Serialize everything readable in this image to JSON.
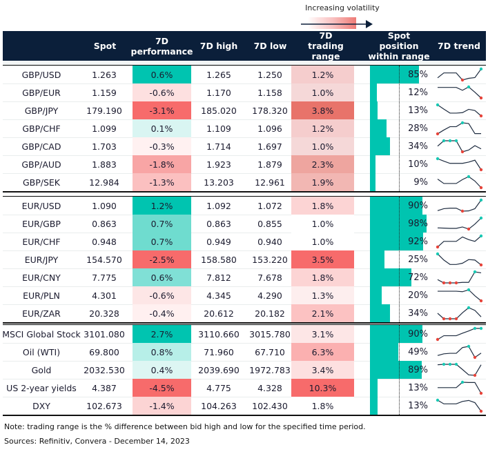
{
  "legend": {
    "label": "Increasing volatility"
  },
  "columns": {
    "spot": "Spot",
    "perf": "7D performance",
    "high": "7D high",
    "low": "7D low",
    "range": "7D trading range",
    "position": "Spot position within range",
    "trend": "7D trend"
  },
  "colors": {
    "header": "#0b1f3a",
    "teal": "#00c4b0",
    "max_marker": "#19c9b4",
    "min_marker": "#e8443a"
  },
  "groups": [
    {
      "rows": [
        {
          "name": "GBP/USD",
          "spot": "1.263",
          "perf": "0.6%",
          "perf_color": "#00c4b0",
          "high": "1.265",
          "low": "1.250",
          "range": "1.2%",
          "range_color": "#f5cdcd",
          "position": 85,
          "position_label": "85%",
          "trend": [
            9,
            29,
            29,
            29,
            0,
            7,
            10,
            45
          ]
        },
        {
          "name": "GBP/EUR",
          "spot": "1.159",
          "perf": "-0.6%",
          "perf_color": "#fde0e0",
          "high": "1.170",
          "low": "1.158",
          "range": "1.0%",
          "range_color": "#f5d8d8",
          "position": 12,
          "position_label": "12%",
          "trend": [
            44,
            44,
            44,
            44,
            32,
            46,
            24,
            0
          ]
        },
        {
          "name": "GBP/JPY",
          "spot": "179.190",
          "perf": "-3.1%",
          "perf_color": "#f76b6b",
          "high": "185.020",
          "low": "178.320",
          "range": "3.8%",
          "range_color": "#e8736a",
          "position": 13,
          "position_label": "13%",
          "trend": [
            47,
            29,
            12,
            12,
            14,
            28,
            23,
            0
          ]
        },
        {
          "name": "GBP/CHF",
          "spot": "1.099",
          "perf": "0.1%",
          "perf_color": "#d9f5f2",
          "high": "1.109",
          "low": "1.096",
          "range": "1.2%",
          "range_color": "#f5cdcd",
          "position": 28,
          "position_label": "28%",
          "trend": [
            0,
            16,
            30,
            30,
            46,
            43,
            1,
            1
          ]
        },
        {
          "name": "GBP/CAD",
          "spot": "1.703",
          "perf": "-0.3%",
          "perf_color": "#fff1f1",
          "high": "1.714",
          "low": "1.697",
          "range": "1.0%",
          "range_color": "#f5d8d8",
          "position": 34,
          "position_label": "34%",
          "trend": [
            23,
            45,
            45,
            45,
            0,
            7,
            25,
            12
          ]
        },
        {
          "name": "GBP/AUD",
          "spot": "1.883",
          "perf": "-1.8%",
          "perf_color": "#f8a5a5",
          "high": "1.923",
          "low": "1.879",
          "range": "2.3%",
          "range_color": "#eea59f",
          "position": 10,
          "position_label": "10%",
          "trend": [
            45,
            35,
            26,
            26,
            26,
            31,
            39,
            0
          ]
        },
        {
          "name": "GBP/SEK",
          "spot": "12.984",
          "perf": "-1.3%",
          "perf_color": "#fbc0c0",
          "high": "13.203",
          "low": "12.961",
          "range": "1.9%",
          "range_color": "#f2b7b3",
          "position": 9,
          "position_label": "9%",
          "trend": [
            35,
            17,
            17,
            17,
            33,
            45,
            27,
            0
          ]
        }
      ]
    },
    {
      "rows": [
        {
          "name": "EUR/USD",
          "spot": "1.090",
          "perf": "1.2%",
          "perf_color": "#00c4b0",
          "high": "1.092",
          "low": "1.072",
          "range": "1.8%",
          "range_color": "#fcd4d4",
          "position": 90,
          "position_label": "90%",
          "trend": [
            2,
            10,
            12,
            12,
            0,
            1,
            10,
            45
          ]
        },
        {
          "name": "EUR/GBP",
          "spot": "0.863",
          "perf": "0.7%",
          "perf_color": "#6fdccf",
          "high": "0.863",
          "low": "0.855",
          "range": "1.0%",
          "range_color": "#ffffff",
          "position": 98,
          "position_label": "98%",
          "trend": [
            5,
            4,
            3,
            3,
            9,
            0,
            21,
            47
          ]
        },
        {
          "name": "EUR/CHF",
          "spot": "0.948",
          "perf": "0.7%",
          "perf_color": "#6fdccf",
          "high": "0.949",
          "low": "0.940",
          "range": "1.0%",
          "range_color": "#ffffff",
          "position": 92,
          "position_label": "92%",
          "trend": [
            0,
            23,
            23,
            23,
            41,
            30,
            23,
            45
          ]
        },
        {
          "name": "EUR/JPY",
          "spot": "154.570",
          "perf": "-2.5%",
          "perf_color": "#f76b6b",
          "high": "158.580",
          "low": "153.220",
          "range": "3.5%",
          "range_color": "#f76b6b",
          "position": 25,
          "position_label": "25%",
          "trend": [
            45,
            20,
            2,
            2,
            7,
            22,
            20,
            0
          ]
        },
        {
          "name": "EUR/CNY",
          "spot": "7.775",
          "perf": "0.6%",
          "perf_color": "#80e0d6",
          "high": "7.812",
          "low": "7.678",
          "range": "1.8%",
          "range_color": "#fcd4d4",
          "position": 72,
          "position_label": "72%",
          "trend": [
            13,
            0,
            0,
            0,
            2,
            2,
            44,
            40
          ]
        },
        {
          "name": "EUR/PLN",
          "spot": "4.301",
          "perf": "-0.6%",
          "perf_color": "#fde6e6",
          "high": "4.345",
          "low": "4.290",
          "range": "1.3%",
          "range_color": "#fdeeee",
          "position": 20,
          "position_label": "20%",
          "trend": [
            40,
            40,
            40,
            40,
            38,
            46,
            21,
            0
          ]
        },
        {
          "name": "EUR/ZAR",
          "spot": "20.328",
          "perf": "-0.4%",
          "perf_color": "#fff0f0",
          "high": "20.612",
          "low": "20.182",
          "range": "2.1%",
          "range_color": "#fcc2c2",
          "position": 34,
          "position_label": "34%",
          "trend": [
            23,
            0,
            0,
            0,
            25,
            46,
            35,
            8
          ]
        }
      ]
    },
    {
      "rows": [
        {
          "name": "MSCI Global Stock",
          "spot": "3101.080",
          "perf": "2.7%",
          "perf_color": "#00c4b0",
          "high": "3110.660",
          "low": "3015.780",
          "range": "3.1%",
          "range_color": "#fde6e6",
          "position": 90,
          "position_label": "90%",
          "trend": [
            0,
            15,
            15,
            15,
            25,
            34,
            44,
            44
          ]
        },
        {
          "name": "Oil (WTI)",
          "spot": "69.800",
          "perf": "0.8%",
          "perf_color": "#b7efe8",
          "high": "71.960",
          "low": "67.710",
          "range": "6.3%",
          "range_color": "#fbb0b0",
          "position": 49,
          "position_label": "49%",
          "trend": [
            8,
            15,
            17,
            17,
            41,
            46,
            0,
            18
          ]
        },
        {
          "name": "Gold",
          "spot": "2032.530",
          "perf": "0.4%",
          "perf_color": "#ddf6f3",
          "high": "2039.690",
          "low": "1972.783",
          "range": "3.4%",
          "range_color": "#fde0e0",
          "position": 89,
          "position_label": "89%",
          "trend": [
            45,
            47,
            47,
            47,
            25,
            2,
            0,
            45
          ]
        },
        {
          "name": "US 2-year yields",
          "spot": "4.387",
          "perf": "-4.5%",
          "perf_color": "#f76b6b",
          "high": "4.775",
          "low": "4.328",
          "range": "10.3%",
          "range_color": "#f76b6b",
          "position": 13,
          "position_label": "13%",
          "trend": [
            23,
            23,
            23,
            23,
            45,
            44,
            44,
            0
          ]
        },
        {
          "name": "DXY",
          "spot": "102.673",
          "perf": "-1.4%",
          "perf_color": "#fcd4d4",
          "high": "104.263",
          "low": "102.430",
          "range": "1.8%",
          "range_color": "#ffffff",
          "position": 13,
          "position_label": "13%",
          "trend": [
            45,
            30,
            30,
            30,
            40,
            44,
            35,
            0
          ]
        }
      ]
    }
  ],
  "notes": {
    "note": "Note: trading range is the % difference between bid high and low for the specified time period.",
    "sources": "Sources: Refinitiv, Convera - December 14, 2023"
  }
}
